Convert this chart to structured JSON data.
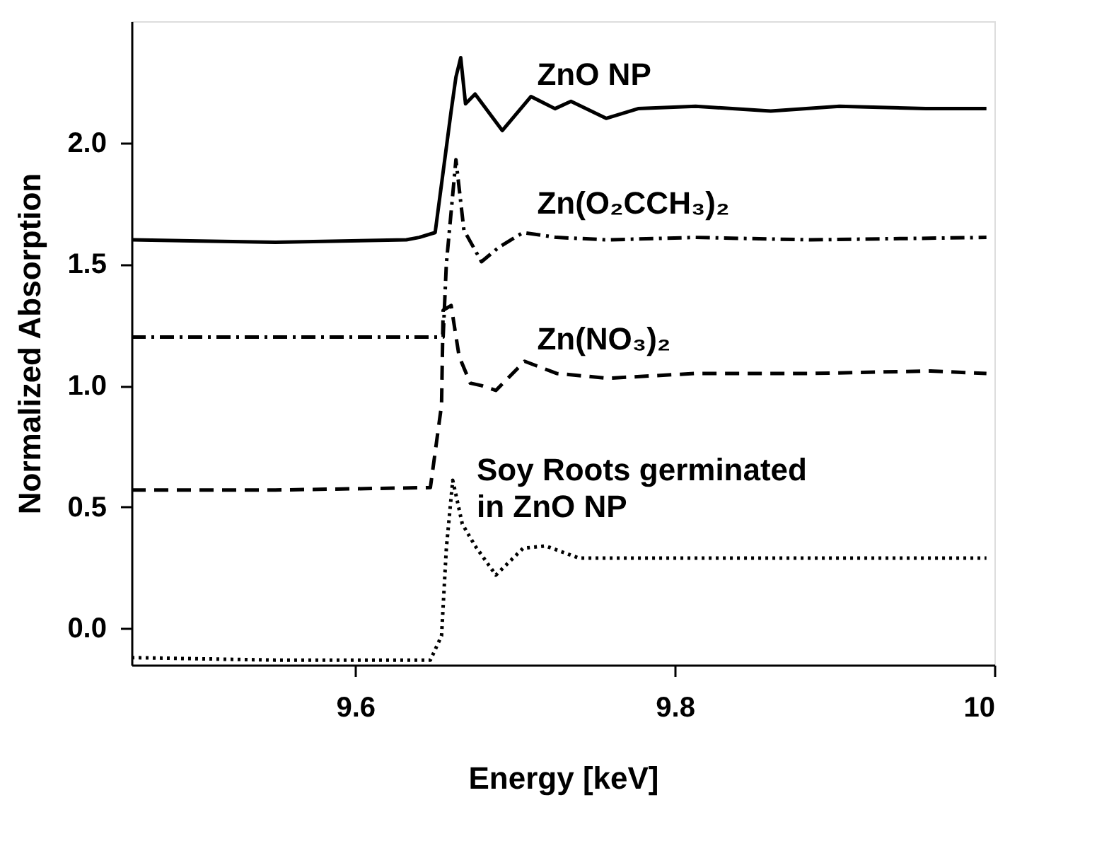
{
  "chart_data": {
    "type": "line",
    "xlabel": "Energy [keV]",
    "ylabel": "Normalized Absorption",
    "xlim": [
      9.46,
      10.0
    ],
    "ylim": [
      -0.15,
      2.5
    ],
    "xticks": [
      9.6,
      9.8,
      10
    ],
    "yticks": [
      {
        "value": 0,
        "label": "0.0"
      },
      {
        "value": 0.5,
        "label": "0.5"
      },
      {
        "value": 1,
        "label": "1.0"
      },
      {
        "value": 1.5,
        "label": "1.5"
      },
      {
        "value": 2,
        "label": "2.0"
      }
    ],
    "grid": false,
    "marker": "none",
    "series": [
      {
        "name": "ZnO NP",
        "color": "#000000",
        "line_style": "solid",
        "x": [
          9.46,
          9.55,
          9.632,
          9.64,
          9.65,
          9.655,
          9.66,
          9.663,
          9.666,
          9.669,
          9.675,
          9.692,
          9.71,
          9.725,
          9.735,
          9.757,
          9.777,
          9.813,
          9.86,
          9.903,
          9.957,
          9.995
        ],
        "values": [
          1.6,
          1.59,
          1.6,
          1.61,
          1.63,
          1.88,
          2.13,
          2.27,
          2.35,
          2.16,
          2.2,
          2.05,
          2.19,
          2.14,
          2.17,
          2.1,
          2.14,
          2.15,
          2.13,
          2.15,
          2.14,
          2.14
        ]
      },
      {
        "name": "Zn(O₂CCH₃)₂",
        "color": "#000000",
        "line_style": "dashdot",
        "x": [
          9.46,
          9.55,
          9.655,
          9.657,
          9.663,
          9.668,
          9.679,
          9.69,
          9.705,
          9.726,
          9.758,
          9.813,
          9.885,
          9.995
        ],
        "values": [
          1.2,
          1.2,
          1.2,
          1.5,
          1.93,
          1.64,
          1.51,
          1.57,
          1.63,
          1.61,
          1.6,
          1.61,
          1.6,
          1.61
        ]
      },
      {
        "name": "Zn(NO₃)₂",
        "color": "#000000",
        "line_style": "dashed",
        "x": [
          9.46,
          9.55,
          9.647,
          9.654,
          9.655,
          9.66,
          9.665,
          9.672,
          9.679,
          9.688,
          9.706,
          9.726,
          9.758,
          9.813,
          9.885,
          9.96,
          9.995
        ],
        "values": [
          0.57,
          0.57,
          0.58,
          0.92,
          1.31,
          1.33,
          1.12,
          1.01,
          1.0,
          0.98,
          1.1,
          1.05,
          1.03,
          1.05,
          1.05,
          1.06,
          1.05
        ]
      },
      {
        "name": "Soy Roots germinated\nin ZnO NP",
        "color": "#000000",
        "line_style": "dotted",
        "x": [
          9.46,
          9.55,
          9.647,
          9.654,
          9.657,
          9.661,
          9.667,
          9.675,
          9.688,
          9.705,
          9.719,
          9.74,
          9.813,
          9.885,
          9.995
        ],
        "values": [
          -0.12,
          -0.13,
          -0.13,
          -0.03,
          0.33,
          0.61,
          0.43,
          0.34,
          0.22,
          0.33,
          0.34,
          0.29,
          0.29,
          0.29,
          0.29
        ]
      }
    ]
  }
}
